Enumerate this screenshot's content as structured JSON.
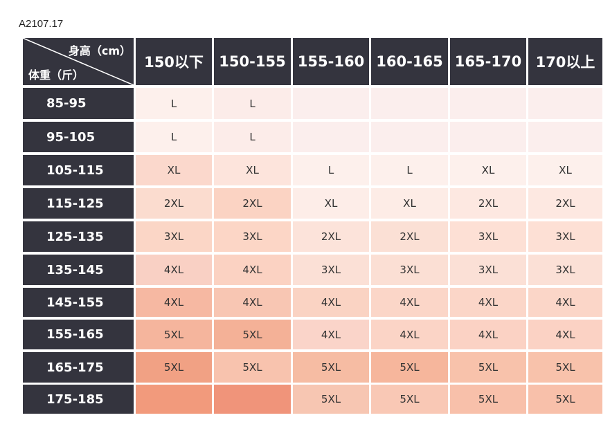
{
  "code": "A2107.17",
  "table": {
    "corner": {
      "height": "身高（cm）",
      "weight": "体重（斤）"
    },
    "columns": [
      "150以下",
      "150-155",
      "155-160",
      "160-165",
      "165-170",
      "170以上"
    ],
    "rows": [
      {
        "weight": "85-95",
        "cells": [
          "L",
          "L",
          null,
          null,
          null,
          null
        ]
      },
      {
        "weight": "95-105",
        "cells": [
          "L",
          "L",
          null,
          null,
          null,
          null
        ]
      },
      {
        "weight": "105-115",
        "cells": [
          "XL",
          "XL",
          "L",
          "L",
          "XL",
          "XL"
        ]
      },
      {
        "weight": "115-125",
        "cells": [
          "2XL",
          "2XL",
          "XL",
          "XL",
          "2XL",
          "2XL"
        ]
      },
      {
        "weight": "125-135",
        "cells": [
          "3XL",
          "3XL",
          "2XL",
          "2XL",
          "3XL",
          "3XL"
        ]
      },
      {
        "weight": "135-145",
        "cells": [
          "4XL",
          "4XL",
          "3XL",
          "3XL",
          "3XL",
          "3XL"
        ]
      },
      {
        "weight": "145-155",
        "cells": [
          "4XL",
          "4XL",
          "4XL",
          "4XL",
          "4XL",
          "4XL"
        ]
      },
      {
        "weight": "155-165",
        "cells": [
          "5XL",
          "5XL",
          "4XL",
          "4XL",
          "4XL",
          "4XL"
        ]
      },
      {
        "weight": "165-175",
        "cells": [
          "5XL",
          "5XL",
          "5XL",
          "5XL",
          "5XL",
          "5XL"
        ]
      },
      {
        "weight": "175-185",
        "cells": [
          null,
          null,
          "5XL",
          "5XL",
          "5XL",
          "5XL"
        ]
      }
    ]
  }
}
